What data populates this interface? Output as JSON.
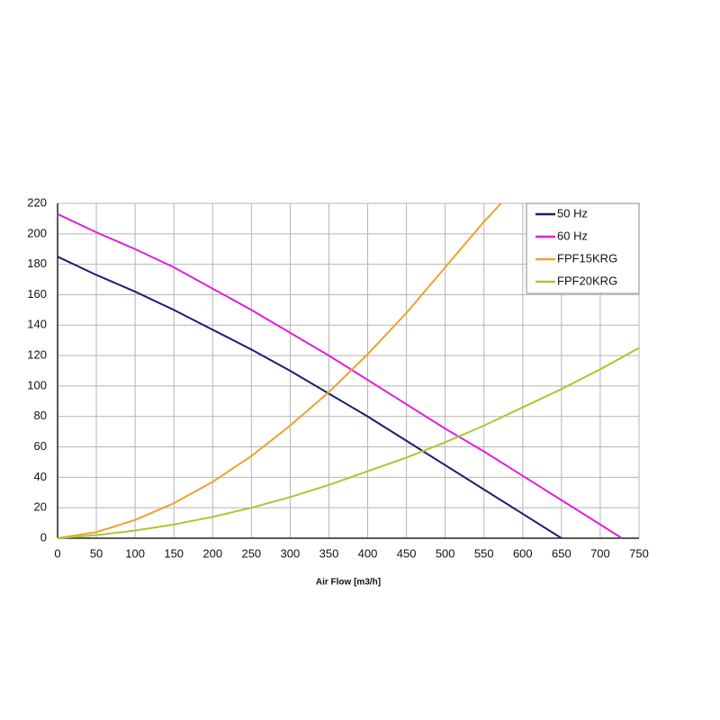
{
  "chart_data": {
    "type": "line",
    "x_label": "Air Flow [m3/h]",
    "xlim": [
      0,
      750
    ],
    "xticks": [
      0,
      50,
      100,
      150,
      200,
      250,
      300,
      350,
      400,
      450,
      500,
      550,
      600,
      650,
      700,
      750
    ],
    "ylim": [
      0,
      220
    ],
    "yticks": [
      0,
      20,
      40,
      60,
      80,
      100,
      120,
      140,
      160,
      180,
      200,
      220
    ],
    "grid": true,
    "legend": "top-right",
    "series": [
      {
        "name": "50 Hz",
        "color": "#1a1f6e",
        "x": [
          0,
          50,
          100,
          150,
          200,
          250,
          300,
          350,
          400,
          450,
          500,
          550,
          600,
          650
        ],
        "values": [
          185,
          173,
          162,
          150,
          137,
          124,
          110,
          95,
          80,
          64,
          48,
          32,
          16,
          0
        ]
      },
      {
        "name": "60 Hz",
        "color": "#e020d8",
        "x": [
          0,
          50,
          100,
          150,
          200,
          250,
          300,
          350,
          400,
          450,
          500,
          550,
          600,
          650,
          700,
          728
        ],
        "values": [
          213,
          201,
          190,
          178,
          164,
          150,
          135,
          120,
          104,
          88,
          72,
          57,
          41,
          25,
          9,
          0
        ]
      },
      {
        "name": "FPF15KRG",
        "color": "#f0a030",
        "x": [
          0,
          50,
          100,
          150,
          200,
          250,
          300,
          350,
          400,
          450,
          500,
          550,
          572
        ],
        "values": [
          0,
          4,
          12,
          23,
          37,
          54,
          74,
          96,
          121,
          148,
          178,
          208,
          220
        ]
      },
      {
        "name": "FPF20KRG",
        "color": "#a8c832",
        "x": [
          0,
          50,
          100,
          150,
          200,
          250,
          300,
          350,
          400,
          450,
          500,
          550,
          600,
          650,
          700,
          750
        ],
        "values": [
          0,
          2,
          5,
          9,
          14,
          20,
          27,
          35,
          44,
          53,
          63,
          74,
          86,
          98,
          111,
          125
        ]
      }
    ]
  }
}
